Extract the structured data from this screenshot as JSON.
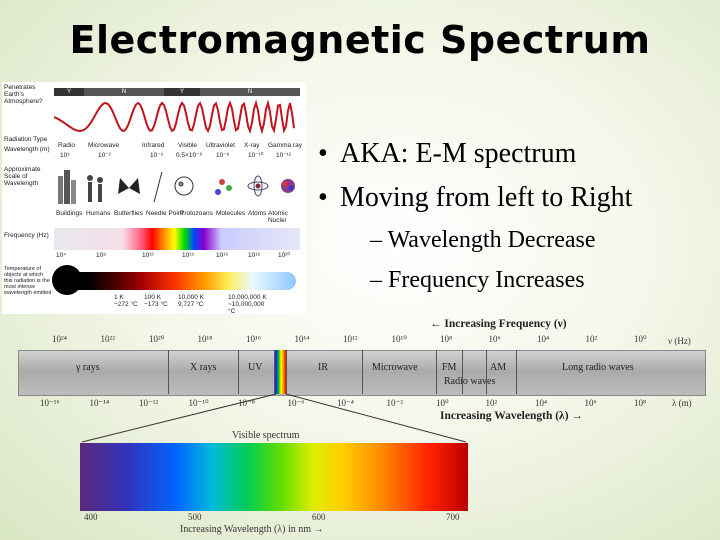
{
  "title": "Electromagnetic Spectrum",
  "bullets": [
    {
      "text": "AKA: E-M spectrum",
      "sub": []
    },
    {
      "text": "Moving from left to Right",
      "sub": [
        "Wavelength Decrease",
        "Frequency Increases"
      ]
    }
  ],
  "diagram": {
    "row_labels": [
      "Penetrates Earth's Atmosphere?",
      "Radiation Type",
      "Wavelength (m)",
      "Approximate Scale of Wavelength",
      "Frequency (Hz)",
      "Temperature of objects at which this radiation is the most intense wavelength emitted"
    ],
    "band_labels": [
      "Y",
      "N",
      "Y",
      "N"
    ],
    "types": [
      "Radio",
      "Microwave",
      "Infrared",
      "Visible",
      "Ultraviolet",
      "X-ray",
      "Gamma ray"
    ],
    "wavelengths": [
      "10³",
      "10⁻²",
      "10⁻⁵",
      "0.5×10⁻⁶",
      "10⁻⁸",
      "10⁻¹⁰",
      "10⁻¹²"
    ],
    "scales": [
      "Buildings",
      "Humans",
      "Butterflies",
      "Needle Point",
      "Protozoans",
      "Molecules",
      "Atoms",
      "Atomic Nuclei"
    ],
    "frequencies": [
      "10⁴",
      "10⁸",
      "10¹²",
      "10¹⁵",
      "10¹⁶",
      "10¹⁸",
      "10²⁰"
    ],
    "temperatures": [
      "1 K −272 °C",
      "100 K −173 °C",
      "10,000 K 9,727 °C",
      "10,000,000 K ~10,000,000 °C"
    ]
  },
  "spectrum": {
    "freq_axis_label": "Increasing Frequency (ν)",
    "freq_unit": "ν (Hz)",
    "freq_ticks": [
      "10²⁴",
      "10²²",
      "10²⁰",
      "10¹⁸",
      "10¹⁶",
      "10¹⁴",
      "10¹²",
      "10¹⁰",
      "10⁸",
      "10⁶",
      "10⁴",
      "10²",
      "10⁰"
    ],
    "regions": [
      "γ rays",
      "X rays",
      "UV",
      "IR",
      "Microwave",
      "FM",
      "AM",
      "Radio waves",
      "Long radio waves"
    ],
    "wl_ticks": [
      "10⁻¹⁶",
      "10⁻¹⁴",
      "10⁻¹²",
      "10⁻¹⁰",
      "10⁻⁸",
      "10⁻⁶",
      "10⁻⁴",
      "10⁻²",
      "10⁰",
      "10²",
      "10⁴",
      "10⁶",
      "10⁸"
    ],
    "wl_unit": "λ (m)",
    "wl_axis_label": "Increasing Wavelength (λ) →",
    "visible_title": "Visible spectrum",
    "visible_ticks": [
      "400",
      "500",
      "600",
      "700"
    ],
    "visible_axis_label": "Increasing Wavelength (λ) in nm →"
  }
}
